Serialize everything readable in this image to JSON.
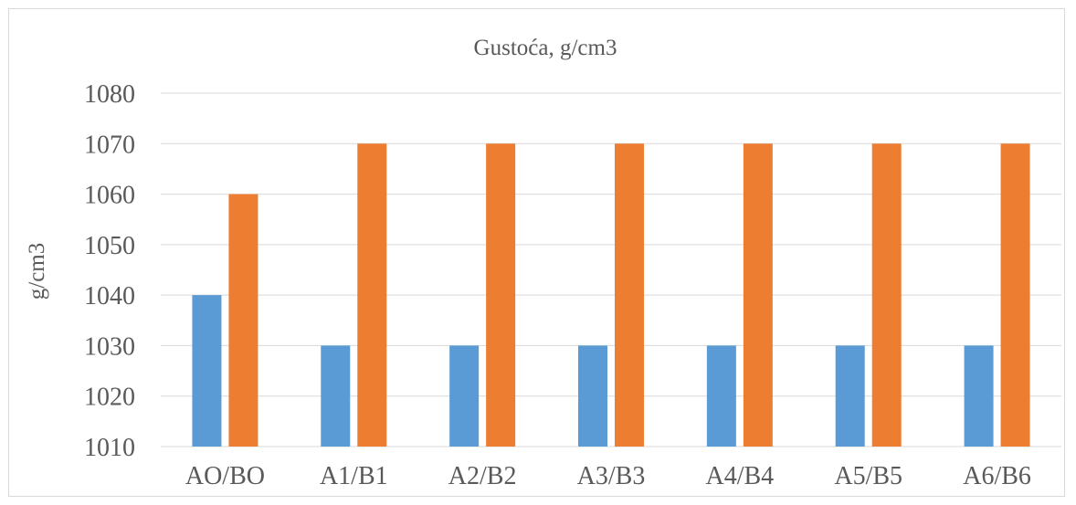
{
  "chart_data": {
    "type": "bar",
    "title": "Gustoća, g/cm3",
    "xlabel": "",
    "ylabel": "g/cm3",
    "categories": [
      "AO/BO",
      "A1/B1",
      "A2/B2",
      "A3/B3",
      "A4/B4",
      "A5/B5",
      "A6/B6"
    ],
    "series": [
      {
        "values": [
          1040,
          1030,
          1030,
          1030,
          1030,
          1030,
          1030
        ],
        "color": "#5b9bd5"
      },
      {
        "values": [
          1060,
          1070,
          1070,
          1070,
          1070,
          1070,
          1070
        ],
        "color": "#ed7d31"
      }
    ],
    "ylim": [
      1010,
      1080
    ],
    "yticks": [
      1010,
      1020,
      1030,
      1040,
      1050,
      1060,
      1070,
      1080
    ],
    "grid": true,
    "legend": "none"
  }
}
